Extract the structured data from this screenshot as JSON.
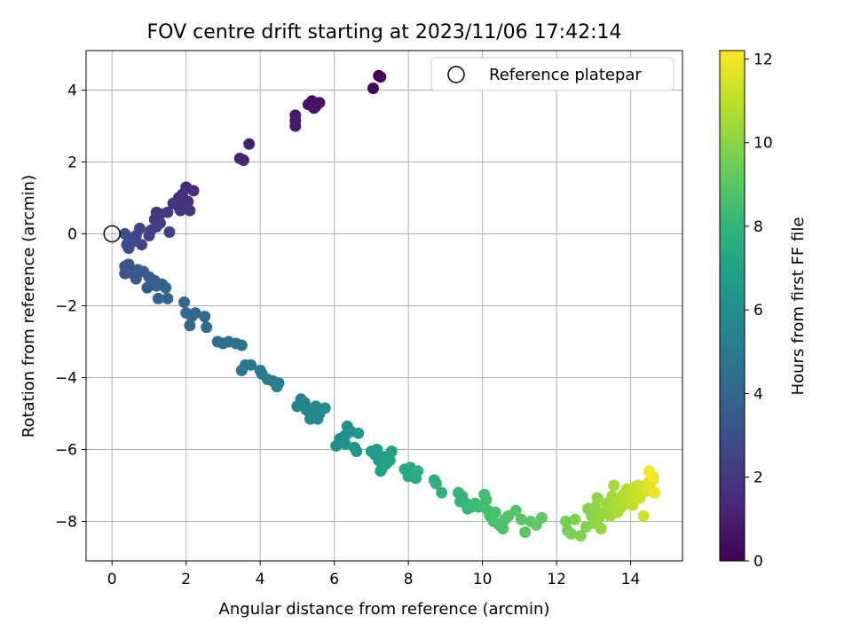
{
  "chart_data": {
    "type": "scatter",
    "title": "FOV centre drift starting at 2023/11/06 17:42:14",
    "xlabel": "Angular distance from reference (arcmin)",
    "ylabel": "Rotation from reference (arcmin)",
    "xlim": [
      -0.7,
      15.4
    ],
    "ylim": [
      -9.1,
      5.1
    ],
    "x_ticks": [
      0,
      2,
      4,
      6,
      8,
      10,
      12,
      14
    ],
    "y_ticks": [
      -8,
      -6,
      -4,
      -2,
      0,
      2,
      4
    ],
    "grid": true,
    "legend": {
      "entries": [
        "Reference platepar"
      ],
      "placement": "top-right"
    },
    "reference_point": {
      "x": 0,
      "y": 0,
      "label": "Reference platepar"
    },
    "colorbar": {
      "label": "Hours from first FF file",
      "range": [
        0,
        12.2
      ],
      "ticks": [
        0,
        2,
        4,
        6,
        8,
        10,
        12
      ],
      "colormap": "viridis",
      "colors": [
        "#440154",
        "#482878",
        "#3e4989",
        "#31688e",
        "#26828e",
        "#1f9e89",
        "#35b779",
        "#6ece58",
        "#b5de2b",
        "#fde725"
      ]
    },
    "series": [
      {
        "name": "FOV centre drift",
        "points": [
          [
            7.2,
            4.4,
            0.1
          ],
          [
            7.25,
            4.37,
            0.15
          ],
          [
            7.05,
            4.05,
            0.2
          ],
          [
            5.4,
            3.7,
            0.5
          ],
          [
            5.3,
            3.6,
            0.55
          ],
          [
            5.5,
            3.55,
            0.6
          ],
          [
            5.6,
            3.65,
            0.65
          ],
          [
            5.45,
            3.5,
            0.7
          ],
          [
            4.95,
            3.3,
            0.8
          ],
          [
            4.95,
            3.15,
            0.85
          ],
          [
            4.95,
            3.0,
            0.9
          ],
          [
            3.7,
            2.5,
            1.1
          ],
          [
            3.45,
            2.1,
            1.2
          ],
          [
            3.55,
            2.05,
            1.25
          ],
          [
            2.0,
            1.3,
            1.5
          ],
          [
            2.2,
            1.2,
            1.55
          ],
          [
            1.9,
            1.1,
            1.6
          ],
          [
            1.8,
            1.0,
            1.65
          ],
          [
            2.05,
            0.9,
            1.7
          ],
          [
            1.8,
            0.75,
            1.75
          ],
          [
            2.0,
            0.75,
            1.8
          ],
          [
            1.85,
            0.65,
            1.85
          ],
          [
            2.1,
            0.65,
            1.9
          ],
          [
            1.65,
            0.85,
            1.95
          ],
          [
            1.5,
            0.6,
            2.0
          ],
          [
            1.3,
            0.55,
            2.05
          ],
          [
            1.2,
            0.6,
            2.1
          ],
          [
            1.15,
            0.4,
            2.15
          ],
          [
            1.3,
            0.3,
            2.2
          ],
          [
            1.2,
            0.2,
            2.25
          ],
          [
            1.05,
            0.1,
            2.3
          ],
          [
            1.0,
            -0.05,
            2.35
          ],
          [
            1.55,
            0.05,
            2.4
          ],
          [
            0.75,
            0.15,
            2.45
          ],
          [
            0.65,
            -0.05,
            2.5
          ],
          [
            0.8,
            -0.3,
            2.55
          ],
          [
            0.6,
            -0.2,
            2.6
          ],
          [
            0.45,
            -0.1,
            2.65
          ],
          [
            0.4,
            -0.3,
            2.7
          ],
          [
            0.45,
            -0.4,
            2.75
          ],
          [
            0.55,
            -0.2,
            2.8
          ],
          [
            0.35,
            0.0,
            2.85
          ],
          [
            0.35,
            -0.9,
            3.2
          ],
          [
            0.45,
            -0.85,
            3.25
          ],
          [
            0.35,
            -1.1,
            3.3
          ],
          [
            0.55,
            -1.1,
            3.35
          ],
          [
            0.7,
            -1.0,
            3.4
          ],
          [
            0.65,
            -1.25,
            3.45
          ],
          [
            0.85,
            -1.05,
            3.5
          ],
          [
            1.0,
            -1.2,
            3.55
          ],
          [
            0.95,
            -1.5,
            3.6
          ],
          [
            1.15,
            -1.3,
            3.65
          ],
          [
            1.2,
            -1.45,
            3.7
          ],
          [
            1.35,
            -1.4,
            3.75
          ],
          [
            1.25,
            -1.8,
            3.8
          ],
          [
            1.5,
            -1.8,
            3.85
          ],
          [
            1.45,
            -1.5,
            3.9
          ],
          [
            1.95,
            -1.9,
            4.0
          ],
          [
            2.0,
            -2.2,
            4.05
          ],
          [
            2.15,
            -2.3,
            4.1
          ],
          [
            2.1,
            -2.55,
            4.15
          ],
          [
            2.25,
            -2.2,
            4.2
          ],
          [
            2.5,
            -2.3,
            4.25
          ],
          [
            2.55,
            -2.6,
            4.3
          ],
          [
            2.85,
            -3.0,
            4.5
          ],
          [
            3.0,
            -3.05,
            4.55
          ],
          [
            3.15,
            -3.0,
            4.6
          ],
          [
            3.35,
            -3.05,
            4.65
          ],
          [
            3.5,
            -3.1,
            4.7
          ],
          [
            3.5,
            -3.8,
            4.8
          ],
          [
            3.6,
            -3.65,
            4.85
          ],
          [
            3.75,
            -3.65,
            4.9
          ],
          [
            4.0,
            -3.8,
            4.95
          ],
          [
            4.05,
            -3.9,
            5.0
          ],
          [
            4.2,
            -4.05,
            5.05
          ],
          [
            4.35,
            -4.1,
            5.1
          ],
          [
            4.45,
            -4.25,
            5.15
          ],
          [
            4.5,
            -4.15,
            5.2
          ],
          [
            5.0,
            -4.8,
            5.4
          ],
          [
            5.1,
            -4.6,
            5.45
          ],
          [
            5.2,
            -4.7,
            5.5
          ],
          [
            5.25,
            -4.9,
            5.55
          ],
          [
            5.4,
            -5.0,
            5.6
          ],
          [
            5.35,
            -5.15,
            5.65
          ],
          [
            5.5,
            -4.8,
            5.7
          ],
          [
            5.6,
            -5.0,
            5.75
          ],
          [
            5.55,
            -5.15,
            5.8
          ],
          [
            5.75,
            -4.85,
            5.85
          ],
          [
            6.05,
            -5.9,
            6.0
          ],
          [
            6.15,
            -5.7,
            6.05
          ],
          [
            6.3,
            -5.6,
            6.1
          ],
          [
            6.35,
            -5.35,
            6.15
          ],
          [
            6.45,
            -5.5,
            6.2
          ],
          [
            6.3,
            -5.85,
            6.25
          ],
          [
            6.55,
            -5.95,
            6.3
          ],
          [
            6.6,
            -6.05,
            6.35
          ],
          [
            6.65,
            -5.55,
            6.4
          ],
          [
            7.0,
            -6.05,
            6.6
          ],
          [
            7.1,
            -6.15,
            6.65
          ],
          [
            7.2,
            -6.3,
            6.7
          ],
          [
            7.15,
            -6.0,
            6.75
          ],
          [
            7.3,
            -6.5,
            6.8
          ],
          [
            7.25,
            -6.6,
            6.85
          ],
          [
            7.35,
            -6.2,
            6.9
          ],
          [
            7.4,
            -6.4,
            6.95
          ],
          [
            7.5,
            -6.3,
            7.0
          ],
          [
            7.55,
            -6.05,
            7.05
          ],
          [
            7.9,
            -6.55,
            7.3
          ],
          [
            8.0,
            -6.75,
            7.35
          ],
          [
            8.05,
            -6.5,
            7.4
          ],
          [
            8.1,
            -6.7,
            7.45
          ],
          [
            8.2,
            -6.8,
            7.5
          ],
          [
            8.25,
            -6.6,
            7.55
          ],
          [
            8.7,
            -6.85,
            7.7
          ],
          [
            8.75,
            -6.95,
            7.75
          ],
          [
            8.9,
            -7.2,
            7.8
          ],
          [
            9.35,
            -7.2,
            8.0
          ],
          [
            9.45,
            -7.3,
            8.05
          ],
          [
            9.4,
            -7.45,
            8.1
          ],
          [
            9.55,
            -7.5,
            8.15
          ],
          [
            9.6,
            -7.65,
            8.2
          ],
          [
            9.7,
            -7.6,
            8.25
          ],
          [
            9.8,
            -7.5,
            8.3
          ],
          [
            9.9,
            -7.6,
            8.35
          ],
          [
            10.05,
            -7.25,
            8.4
          ],
          [
            10.1,
            -7.4,
            8.45
          ],
          [
            10.15,
            -7.7,
            8.5
          ],
          [
            10.2,
            -7.85,
            8.55
          ],
          [
            10.3,
            -8.0,
            8.6
          ],
          [
            10.35,
            -7.75,
            8.65
          ],
          [
            10.45,
            -8.1,
            8.7
          ],
          [
            10.55,
            -8.2,
            8.75
          ],
          [
            10.6,
            -7.95,
            8.8
          ],
          [
            10.7,
            -7.85,
            8.85
          ],
          [
            10.9,
            -7.7,
            8.9
          ],
          [
            11.05,
            -7.95,
            8.95
          ],
          [
            11.15,
            -8.3,
            9.0
          ],
          [
            11.3,
            -8.0,
            9.05
          ],
          [
            11.45,
            -8.1,
            9.1
          ],
          [
            11.6,
            -7.9,
            9.15
          ],
          [
            12.25,
            -8.0,
            9.6
          ],
          [
            12.3,
            -8.25,
            9.65
          ],
          [
            12.4,
            -8.35,
            9.7
          ],
          [
            12.5,
            -7.95,
            9.75
          ],
          [
            12.65,
            -8.4,
            9.8
          ],
          [
            12.8,
            -8.15,
            9.85
          ],
          [
            12.85,
            -7.65,
            9.9
          ],
          [
            12.95,
            -7.85,
            9.95
          ],
          [
            13.0,
            -8.05,
            10.0
          ],
          [
            13.05,
            -7.6,
            10.05
          ],
          [
            13.1,
            -7.35,
            10.1
          ],
          [
            13.15,
            -7.9,
            10.15
          ],
          [
            13.2,
            -8.2,
            10.2
          ],
          [
            13.3,
            -7.75,
            10.25
          ],
          [
            13.35,
            -7.5,
            10.3
          ],
          [
            13.4,
            -7.65,
            10.35
          ],
          [
            13.45,
            -7.85,
            10.4
          ],
          [
            13.5,
            -7.3,
            10.45
          ],
          [
            13.55,
            -7.0,
            10.5
          ],
          [
            13.6,
            -7.55,
            10.55
          ],
          [
            13.65,
            -7.75,
            10.6
          ],
          [
            13.7,
            -7.4,
            10.65
          ],
          [
            13.75,
            -7.6,
            10.7
          ],
          [
            13.8,
            -7.25,
            10.75
          ],
          [
            13.85,
            -7.45,
            10.8
          ],
          [
            13.9,
            -7.1,
            10.85
          ],
          [
            13.95,
            -7.5,
            10.9
          ],
          [
            14.0,
            -7.3,
            10.95
          ],
          [
            14.05,
            -7.55,
            11.0
          ],
          [
            14.1,
            -7.05,
            11.1
          ],
          [
            14.15,
            -7.3,
            11.15
          ],
          [
            14.2,
            -7.0,
            11.2
          ],
          [
            14.25,
            -7.35,
            11.25
          ],
          [
            14.3,
            -7.1,
            11.3
          ],
          [
            14.35,
            -7.85,
            11.35
          ],
          [
            14.4,
            -7.0,
            11.4
          ],
          [
            14.45,
            -7.15,
            11.5
          ],
          [
            14.5,
            -6.9,
            11.6
          ],
          [
            14.55,
            -7.1,
            11.7
          ],
          [
            14.6,
            -6.85,
            11.8
          ],
          [
            14.65,
            -7.2,
            11.9
          ],
          [
            14.5,
            -6.6,
            12.0
          ],
          [
            14.6,
            -6.75,
            12.1
          ]
        ]
      }
    ]
  }
}
